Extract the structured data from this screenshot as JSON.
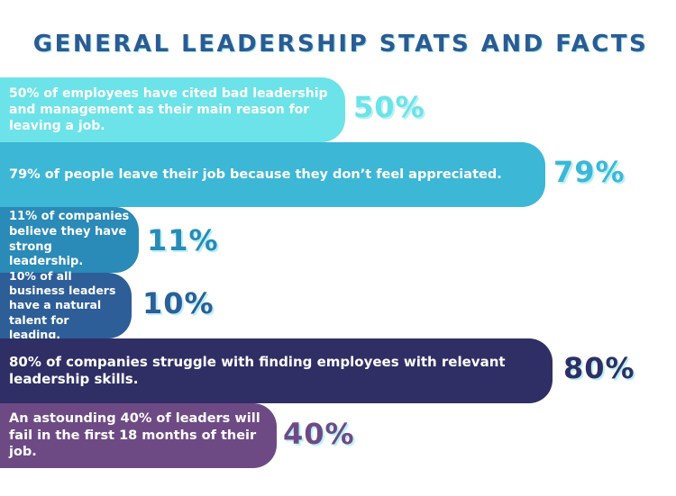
{
  "chart_data": {
    "type": "bar",
    "orientation": "horizontal",
    "title": "GENERAL LEADERSHIP STATS AND FACTS",
    "categories": [
      "50% of employees have cited bad leadership and management as their main reason for leaving a job.",
      "79% of people leave their job because they don’t feel appreciated.",
      "11% of companies believe they have strong leadership.",
      "10% of all business leaders have a natural talent for leading.",
      "80% of companies struggle with finding employees with relevant leadership skills.",
      "An astounding 40% of leaders will fail in the first 18 months of their job."
    ],
    "values": [
      50,
      79,
      11,
      10,
      80,
      40
    ],
    "labels": [
      "50%",
      "79%",
      "11%",
      "10%",
      "80%",
      "40%"
    ],
    "colors": [
      "#6ce3e8",
      "#3db7d6",
      "#2a8ab8",
      "#2d5e97",
      "#2f2f66",
      "#6e4a85"
    ],
    "xlabel": "",
    "ylabel": "",
    "xlim": [
      0,
      100
    ]
  }
}
